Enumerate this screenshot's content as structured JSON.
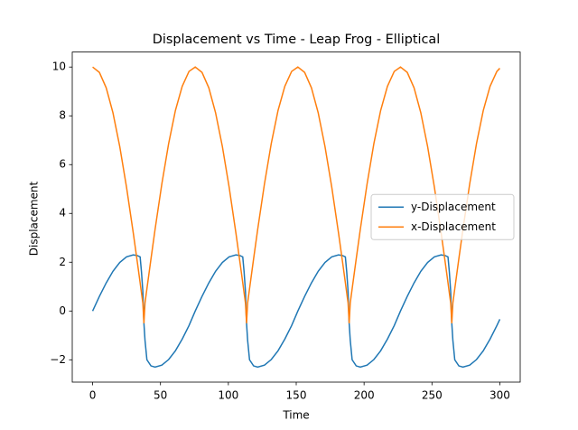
{
  "chart_data": {
    "type": "line",
    "title": "Displacement vs Time - Leap Frog - Elliptical",
    "x_label": "Time",
    "y_label": "Displacement",
    "x": [
      0,
      5,
      10,
      15,
      20,
      25,
      30,
      33,
      35,
      36,
      37,
      37.8,
      38.6,
      40,
      43,
      46,
      51,
      56,
      61,
      66,
      71,
      75.6,
      80.6,
      85.6,
      90.6,
      95.6,
      100.6,
      105.6,
      108.6,
      110.6,
      111.6,
      112.6,
      113.4,
      114.2,
      115.6,
      118.6,
      121.6,
      126.6,
      131.6,
      136.6,
      141.6,
      146.6,
      151.2,
      156.2,
      161.2,
      166.2,
      171.2,
      176.2,
      181.2,
      184.2,
      186.2,
      187.2,
      188.2,
      189,
      189.8,
      191.2,
      194.2,
      197.2,
      202.2,
      207.2,
      212.2,
      217.2,
      222.2,
      226.8,
      231.8,
      236.8,
      241.8,
      246.8,
      251.8,
      256.8,
      259.8,
      261.8,
      262.8,
      263.8,
      264.6,
      265.4,
      266.8,
      269.8,
      272.8,
      277.8,
      282.8,
      287.8,
      292.8,
      297.8,
      300
    ],
    "series": [
      {
        "name": "y-Displacement",
        "color": "#1f77b4",
        "values": [
          0,
          0.6,
          1.15,
          1.63,
          1.99,
          2.22,
          2.3,
          2.27,
          2.22,
          1.6,
          0.8,
          -0.5,
          -1.2,
          -2.0,
          -2.25,
          -2.3,
          -2.22,
          -1.99,
          -1.63,
          -1.15,
          -0.6,
          0,
          0.6,
          1.15,
          1.63,
          1.99,
          2.22,
          2.3,
          2.27,
          2.22,
          1.6,
          0.8,
          -0.5,
          -1.2,
          -2.0,
          -2.25,
          -2.3,
          -2.22,
          -1.99,
          -1.63,
          -1.15,
          -0.6,
          0,
          0.6,
          1.15,
          1.63,
          1.99,
          2.22,
          2.3,
          2.27,
          2.22,
          1.6,
          0.8,
          -0.5,
          -1.2,
          -2.0,
          -2.25,
          -2.3,
          -2.22,
          -1.99,
          -1.63,
          -1.15,
          -0.6,
          0,
          0.6,
          1.15,
          1.63,
          1.99,
          2.22,
          2.3,
          2.27,
          2.22,
          1.6,
          0.8,
          -0.5,
          -1.2,
          -2.0,
          -2.25,
          -2.3,
          -2.22,
          -1.99,
          -1.63,
          -1.15,
          -0.6,
          -0.34
        ]
      },
      {
        "name": "x-Displacement",
        "color": "#ff7f0e",
        "values": [
          10,
          9.78,
          9.15,
          8.12,
          6.74,
          5.07,
          3.18,
          1.98,
          1.16,
          0.74,
          0.33,
          -0.5,
          0.33,
          0.91,
          2.14,
          3.34,
          5.21,
          6.86,
          8.22,
          9.21,
          9.82,
          10,
          9.78,
          9.15,
          8.12,
          6.74,
          5.07,
          3.18,
          1.98,
          1.16,
          0.74,
          0.33,
          -0.5,
          0.33,
          0.91,
          2.14,
          3.34,
          5.21,
          6.86,
          8.22,
          9.21,
          9.82,
          10,
          9.78,
          9.15,
          8.12,
          6.74,
          5.07,
          3.18,
          1.98,
          1.16,
          0.74,
          0.33,
          -0.5,
          0.33,
          0.91,
          2.14,
          3.34,
          5.21,
          6.86,
          8.22,
          9.21,
          9.82,
          10,
          9.78,
          9.15,
          8.12,
          6.74,
          5.07,
          3.18,
          1.98,
          1.16,
          0.74,
          0.33,
          -0.5,
          0.33,
          0.91,
          2.14,
          3.34,
          5.21,
          6.86,
          8.22,
          9.21,
          9.82,
          9.95
        ]
      }
    ],
    "xlim": [
      -15,
      315
    ],
    "ylim": [
      -2.915,
      10.615
    ],
    "xticks": [
      0,
      50,
      100,
      150,
      200,
      250,
      300
    ],
    "yticks": [
      {
        "value": -2,
        "label": "−2"
      },
      0,
      2,
      4,
      6,
      8,
      10
    ],
    "legend": "center right"
  }
}
